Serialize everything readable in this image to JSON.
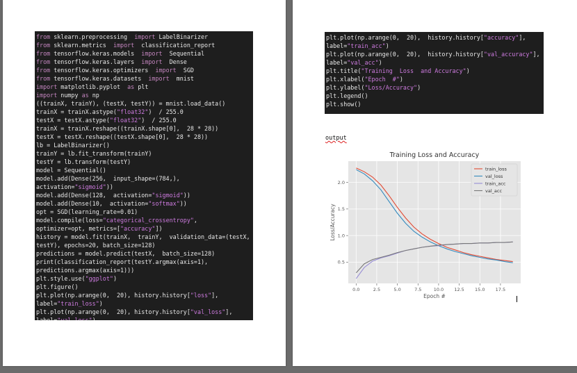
{
  "left_page": {
    "code_lines": [
      "from sklearn.preprocessing  import LabelBinarizer",
      "from sklearn.metrics  import  classification_report",
      "from tensorflow.keras.models  import  Sequential",
      "from tensorflow.keras.layers  import  Dense",
      "from tensorflow.keras.optimizers  import  SGD",
      "from tensorflow.keras.datasets  import  mnist",
      "import matplotlib.pyplot  as plt",
      "import numpy as np",
      "((trainX, trainY), (testX, testY)) = mnist.load_data()",
      "trainX = trainX.astype(\"float32\")  / 255.0",
      "testX = testX.astype(\"float32\")  / 255.0",
      "trainX = trainX.reshape((trainX.shape[0],  28 * 28))",
      "testX = testX.reshape((testX.shape[0],  28 * 28))",
      "lb = LabelBinarizer()",
      "trainY = lb.fit_transform(trainY)",
      "testY = lb.transform(testY)",
      "model = Sequential()",
      "model.add(Dense(256,  input_shape=(784,),",
      "activation=\"sigmoid\"))",
      "model.add(Dense(128,  activation=\"sigmoid\"))",
      "model.add(Dense(10,  activation=\"softmax\"))",
      "opt = SGD(learning_rate=0.01)",
      "model.compile(loss=\"categorical_crossentropy\",",
      "optimizer=opt, metrics=[\"accuracy\"])",
      "history = model.fit(trainX,  trainY,  validation_data=(testX,",
      "testY), epochs=20, batch_size=128)",
      "predictions = model.predict(testX,  batch_size=128)",
      "print(classification_report(testY.argmax(axis=1),",
      "predictions.argmax(axis=1)))",
      "plt.style.use(\"ggplot\")",
      "plt.figure()",
      "plt.plot(np.arange(0,  20), history.history[\"loss\"],",
      "label=\"train_loss\")",
      "plt.plot(np.arange(0,  20), history.history[\"val_loss\"],",
      "label=\"val_loss\")"
    ]
  },
  "right_page": {
    "code_lines": [
      "plt.plot(np.arange(0,  20),  history.history[\"accuracy\"],",
      "label=\"train_acc\")",
      "plt.plot(np.arange(0,  20),  history.history[\"val_accuracy\"],",
      "label=\"val_acc\")",
      "plt.title(\"Training  Loss  and Accuracy\")",
      "plt.xlabel(\"Epoch  #\")",
      "plt.ylabel(\"Loss/Accuracy\")",
      "plt.legend()",
      "plt.show()"
    ],
    "output_label": "output"
  },
  "colors": {
    "train_loss": "#e24a33",
    "val_loss": "#348abd",
    "train_acc": "#988ed5",
    "val_acc": "#777777",
    "plot_bg": "#e5e5e5"
  },
  "chart_data": {
    "type": "line",
    "title": "Training Loss and Accuracy",
    "xlabel": "Epoch #",
    "ylabel": "Loss/Accuracy",
    "xlim": [
      -0.95,
      19.95
    ],
    "ylim": [
      0.1,
      2.4
    ],
    "xticks": [
      0.0,
      2.5,
      5.0,
      7.5,
      10.0,
      12.5,
      15.0,
      17.5
    ],
    "xtick_labels": [
      "0.0",
      "2.5",
      "5.0",
      "7.5",
      "10.0",
      "12.5",
      "15.0",
      "17.5"
    ],
    "yticks": [
      0.5,
      1.0,
      1.5,
      2.0
    ],
    "ytick_labels": [
      "0.5",
      "1.0",
      "1.5",
      "2.0"
    ],
    "grid": true,
    "legend": "top-right",
    "x": [
      0,
      1,
      2,
      3,
      4,
      5,
      6,
      7,
      8,
      9,
      10,
      11,
      12,
      13,
      14,
      15,
      16,
      17,
      18,
      19
    ],
    "series": [
      {
        "name": "train_loss",
        "values": [
          2.27,
          2.2,
          2.1,
          1.95,
          1.75,
          1.53,
          1.33,
          1.16,
          1.03,
          0.93,
          0.85,
          0.78,
          0.73,
          0.68,
          0.64,
          0.61,
          0.58,
          0.55,
          0.53,
          0.51
        ]
      },
      {
        "name": "val_loss",
        "values": [
          2.24,
          2.16,
          2.03,
          1.86,
          1.64,
          1.42,
          1.23,
          1.08,
          0.97,
          0.88,
          0.81,
          0.75,
          0.7,
          0.66,
          0.62,
          0.59,
          0.56,
          0.54,
          0.51,
          0.49
        ]
      },
      {
        "name": "train_acc",
        "values": [
          0.19,
          0.4,
          0.52,
          0.58,
          0.62,
          0.67,
          0.72,
          0.75,
          0.78,
          0.8,
          0.81,
          0.83,
          0.84,
          0.85,
          0.85,
          0.86,
          0.86,
          0.87,
          0.87,
          0.88
        ]
      },
      {
        "name": "val_acc",
        "values": [
          0.3,
          0.47,
          0.55,
          0.59,
          0.63,
          0.68,
          0.72,
          0.75,
          0.78,
          0.8,
          0.82,
          0.83,
          0.84,
          0.85,
          0.85,
          0.86,
          0.86,
          0.87,
          0.87,
          0.88
        ]
      }
    ]
  }
}
